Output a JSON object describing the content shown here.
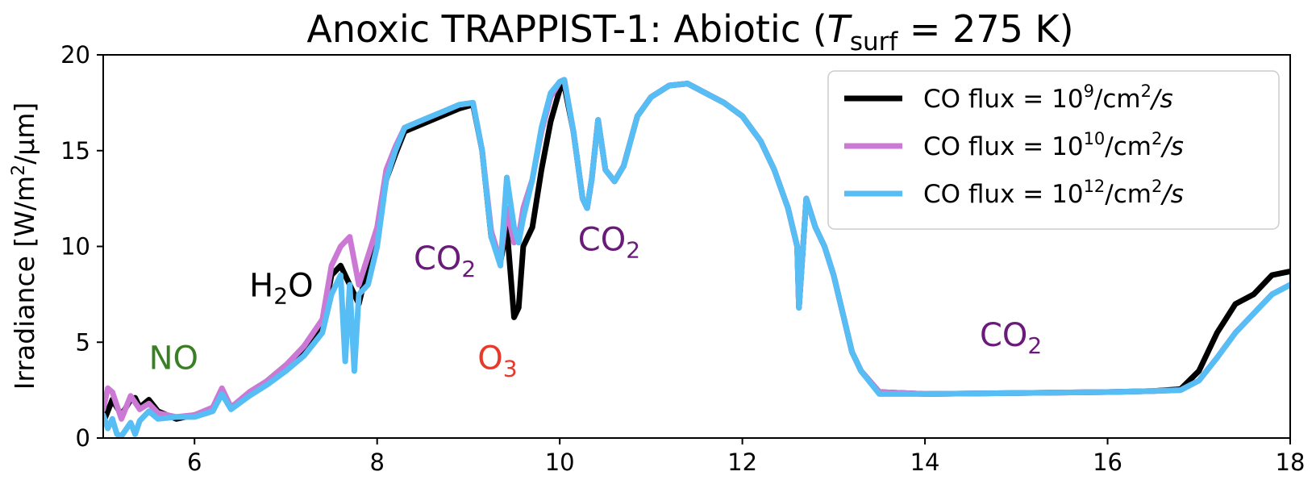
{
  "chart_data": {
    "type": "line",
    "title": {
      "prefix": "Anoxic TRAPPIST-1: Abiotic (",
      "var": "T",
      "var_sub": "surf",
      "suffix": " = 275 K)"
    },
    "ylabel": {
      "prefix": "Irradiance [W/m",
      "sup": "2",
      "suffix": "/μm]"
    },
    "xlabel": "",
    "xlim": [
      5,
      18
    ],
    "ylim": [
      0,
      20
    ],
    "xticks": [
      "6",
      "8",
      "10",
      "12",
      "14",
      "16",
      "18"
    ],
    "yticks": [
      "0",
      "5",
      "10",
      "15",
      "20"
    ],
    "xtick_values": [
      6,
      8,
      10,
      12,
      14,
      16,
      18
    ],
    "ytick_values": [
      0,
      5,
      10,
      15,
      20
    ],
    "legend_position": "top-right",
    "series": [
      {
        "name": "CO flux = 10^9/cm^2/s",
        "legend": {
          "prefix": "CO flux = 10",
          "exp": "9",
          "mid": "/cm",
          "sup2": "2",
          "suffix": "/s"
        },
        "color": "#000000",
        "points": [
          [
            5.0,
            0.8
          ],
          [
            5.1,
            2.0
          ],
          [
            5.2,
            1.2
          ],
          [
            5.3,
            2.0
          ],
          [
            5.35,
            2.1
          ],
          [
            5.4,
            1.6
          ],
          [
            5.5,
            2.0
          ],
          [
            5.6,
            1.4
          ],
          [
            5.8,
            1.0
          ],
          [
            6.0,
            1.2
          ],
          [
            6.2,
            1.5
          ],
          [
            6.3,
            2.5
          ],
          [
            6.4,
            1.6
          ],
          [
            6.6,
            2.3
          ],
          [
            6.8,
            3.0
          ],
          [
            7.0,
            3.8
          ],
          [
            7.2,
            4.6
          ],
          [
            7.4,
            6.0
          ],
          [
            7.5,
            8.5
          ],
          [
            7.6,
            9.0
          ],
          [
            7.7,
            8.0
          ],
          [
            7.8,
            7.0
          ],
          [
            7.9,
            9.0
          ],
          [
            8.0,
            10.5
          ],
          [
            8.1,
            13.5
          ],
          [
            8.2,
            14.8
          ],
          [
            8.3,
            16.0
          ],
          [
            8.5,
            16.4
          ],
          [
            8.7,
            16.8
          ],
          [
            8.9,
            17.2
          ],
          [
            9.05,
            17.4
          ],
          [
            9.15,
            15.0
          ],
          [
            9.25,
            10.5
          ],
          [
            9.35,
            9.2
          ],
          [
            9.42,
            11.0
          ],
          [
            9.5,
            6.3
          ],
          [
            9.55,
            6.8
          ],
          [
            9.6,
            10.0
          ],
          [
            9.7,
            11.0
          ],
          [
            9.8,
            14.0
          ],
          [
            9.9,
            16.5
          ],
          [
            10.0,
            18.2
          ],
          [
            10.05,
            18.4
          ],
          [
            10.15,
            16.0
          ],
          [
            10.25,
            12.5
          ],
          [
            10.3,
            12.0
          ],
          [
            10.35,
            13.5
          ],
          [
            10.42,
            16.6
          ],
          [
            10.5,
            14.0
          ],
          [
            10.6,
            13.4
          ],
          [
            10.7,
            14.2
          ],
          [
            10.85,
            16.8
          ],
          [
            11.0,
            17.8
          ],
          [
            11.2,
            18.4
          ],
          [
            11.4,
            18.5
          ],
          [
            11.6,
            18.0
          ],
          [
            11.8,
            17.5
          ],
          [
            12.0,
            16.8
          ],
          [
            12.2,
            15.5
          ],
          [
            12.35,
            14.0
          ],
          [
            12.5,
            12.0
          ],
          [
            12.6,
            10.0
          ],
          [
            12.62,
            6.8
          ],
          [
            12.7,
            12.5
          ],
          [
            12.8,
            11.0
          ],
          [
            12.9,
            10.0
          ],
          [
            13.0,
            8.5
          ],
          [
            13.1,
            6.5
          ],
          [
            13.2,
            4.5
          ],
          [
            13.3,
            3.5
          ],
          [
            13.5,
            2.4
          ],
          [
            14.0,
            2.3
          ],
          [
            15.0,
            2.35
          ],
          [
            16.0,
            2.4
          ],
          [
            16.5,
            2.45
          ],
          [
            16.8,
            2.55
          ],
          [
            17.0,
            3.5
          ],
          [
            17.2,
            5.5
          ],
          [
            17.4,
            7.0
          ],
          [
            17.6,
            7.5
          ],
          [
            17.8,
            8.5
          ],
          [
            18.0,
            8.7
          ]
        ]
      },
      {
        "name": "CO flux = 10^10/cm^2/s",
        "legend": {
          "prefix": "CO flux = 10",
          "exp": "10",
          "mid": "/cm",
          "sup2": "2",
          "suffix": "/s"
        },
        "color": "#cc79d6",
        "points": [
          [
            5.0,
            1.5
          ],
          [
            5.05,
            2.6
          ],
          [
            5.1,
            2.4
          ],
          [
            5.2,
            1.0
          ],
          [
            5.3,
            2.2
          ],
          [
            5.4,
            1.5
          ],
          [
            5.5,
            1.8
          ],
          [
            5.6,
            1.3
          ],
          [
            5.8,
            1.1
          ],
          [
            6.0,
            1.2
          ],
          [
            6.2,
            1.6
          ],
          [
            6.3,
            2.6
          ],
          [
            6.4,
            1.6
          ],
          [
            6.6,
            2.4
          ],
          [
            6.8,
            3.0
          ],
          [
            7.0,
            3.8
          ],
          [
            7.2,
            4.8
          ],
          [
            7.4,
            6.2
          ],
          [
            7.5,
            9.0
          ],
          [
            7.6,
            10.0
          ],
          [
            7.7,
            10.5
          ],
          [
            7.8,
            8.0
          ],
          [
            7.9,
            9.5
          ],
          [
            8.0,
            11.0
          ],
          [
            8.1,
            14.0
          ],
          [
            8.2,
            15.2
          ],
          [
            8.3,
            16.2
          ],
          [
            8.5,
            16.6
          ],
          [
            8.7,
            17.0
          ],
          [
            8.9,
            17.4
          ],
          [
            9.05,
            17.5
          ],
          [
            9.15,
            15.0
          ],
          [
            9.25,
            10.8
          ],
          [
            9.35,
            9.2
          ],
          [
            9.42,
            12.0
          ],
          [
            9.5,
            10.2
          ],
          [
            9.55,
            10.5
          ],
          [
            9.6,
            12.0
          ],
          [
            9.7,
            13.5
          ],
          [
            9.8,
            16.0
          ],
          [
            9.9,
            17.8
          ],
          [
            10.0,
            18.6
          ],
          [
            10.05,
            18.7
          ],
          [
            10.15,
            16.0
          ],
          [
            10.25,
            12.5
          ],
          [
            10.3,
            12.0
          ],
          [
            10.35,
            13.5
          ],
          [
            10.42,
            16.6
          ],
          [
            10.5,
            14.0
          ],
          [
            10.6,
            13.4
          ],
          [
            10.7,
            14.2
          ],
          [
            10.85,
            16.8
          ],
          [
            11.0,
            17.8
          ],
          [
            11.2,
            18.4
          ],
          [
            11.4,
            18.5
          ],
          [
            11.6,
            18.0
          ],
          [
            11.8,
            17.5
          ],
          [
            12.0,
            16.8
          ],
          [
            12.2,
            15.5
          ],
          [
            12.35,
            14.0
          ],
          [
            12.5,
            12.0
          ],
          [
            12.6,
            10.0
          ],
          [
            12.62,
            6.8
          ],
          [
            12.7,
            12.5
          ],
          [
            12.8,
            11.0
          ],
          [
            12.9,
            10.0
          ],
          [
            13.0,
            8.5
          ],
          [
            13.1,
            6.5
          ],
          [
            13.2,
            4.5
          ],
          [
            13.3,
            3.5
          ],
          [
            13.5,
            2.4
          ],
          [
            14.0,
            2.3
          ],
          [
            15.0,
            2.35
          ],
          [
            16.0,
            2.4
          ],
          [
            16.5,
            2.45
          ],
          [
            16.8,
            2.5
          ],
          [
            17.0,
            3.0
          ],
          [
            17.2,
            4.2
          ],
          [
            17.4,
            5.5
          ],
          [
            17.6,
            6.5
          ],
          [
            17.8,
            7.5
          ],
          [
            18.0,
            8.0
          ]
        ]
      },
      {
        "name": "CO flux = 10^12/cm^2/s",
        "legend": {
          "prefix": "CO flux = 10",
          "exp": "12",
          "mid": "/cm",
          "sup2": "2",
          "suffix": "/s"
        },
        "color": "#56bdf5",
        "points": [
          [
            5.0,
            1.2
          ],
          [
            5.05,
            0.5
          ],
          [
            5.1,
            1.0
          ],
          [
            5.15,
            0.2
          ],
          [
            5.2,
            0.1
          ],
          [
            5.3,
            0.8
          ],
          [
            5.35,
            0.2
          ],
          [
            5.4,
            0.9
          ],
          [
            5.5,
            1.4
          ],
          [
            5.6,
            1.0
          ],
          [
            5.8,
            1.1
          ],
          [
            6.0,
            1.1
          ],
          [
            6.2,
            1.4
          ],
          [
            6.3,
            2.3
          ],
          [
            6.4,
            1.5
          ],
          [
            6.6,
            2.2
          ],
          [
            6.8,
            2.8
          ],
          [
            7.0,
            3.5
          ],
          [
            7.2,
            4.3
          ],
          [
            7.4,
            5.5
          ],
          [
            7.5,
            7.5
          ],
          [
            7.6,
            8.5
          ],
          [
            7.65,
            4.0
          ],
          [
            7.7,
            8.0
          ],
          [
            7.75,
            3.5
          ],
          [
            7.8,
            7.5
          ],
          [
            7.9,
            8.0
          ],
          [
            8.0,
            10.0
          ],
          [
            8.1,
            13.5
          ],
          [
            8.2,
            15.0
          ],
          [
            8.3,
            16.2
          ],
          [
            8.5,
            16.6
          ],
          [
            8.7,
            17.0
          ],
          [
            8.9,
            17.4
          ],
          [
            9.05,
            17.5
          ],
          [
            9.15,
            15.0
          ],
          [
            9.25,
            10.5
          ],
          [
            9.35,
            9.0
          ],
          [
            9.42,
            13.6
          ],
          [
            9.5,
            11.0
          ],
          [
            9.55,
            10.2
          ],
          [
            9.6,
            11.5
          ],
          [
            9.7,
            13.5
          ],
          [
            9.8,
            16.2
          ],
          [
            9.9,
            18.0
          ],
          [
            10.0,
            18.6
          ],
          [
            10.05,
            18.7
          ],
          [
            10.15,
            16.0
          ],
          [
            10.25,
            12.5
          ],
          [
            10.3,
            12.0
          ],
          [
            10.35,
            13.5
          ],
          [
            10.42,
            16.6
          ],
          [
            10.5,
            14.0
          ],
          [
            10.6,
            13.4
          ],
          [
            10.7,
            14.2
          ],
          [
            10.85,
            16.8
          ],
          [
            11.0,
            17.8
          ],
          [
            11.2,
            18.4
          ],
          [
            11.4,
            18.5
          ],
          [
            11.6,
            18.0
          ],
          [
            11.8,
            17.5
          ],
          [
            12.0,
            16.8
          ],
          [
            12.2,
            15.5
          ],
          [
            12.35,
            14.0
          ],
          [
            12.5,
            12.0
          ],
          [
            12.6,
            10.0
          ],
          [
            12.62,
            6.8
          ],
          [
            12.7,
            12.5
          ],
          [
            12.8,
            11.0
          ],
          [
            12.9,
            10.0
          ],
          [
            13.0,
            8.5
          ],
          [
            13.1,
            6.5
          ],
          [
            13.2,
            4.5
          ],
          [
            13.3,
            3.5
          ],
          [
            13.5,
            2.3
          ],
          [
            14.0,
            2.3
          ],
          [
            15.0,
            2.35
          ],
          [
            16.0,
            2.4
          ],
          [
            16.5,
            2.45
          ],
          [
            16.8,
            2.5
          ],
          [
            17.0,
            3.0
          ],
          [
            17.2,
            4.2
          ],
          [
            17.4,
            5.5
          ],
          [
            17.6,
            6.5
          ],
          [
            17.8,
            7.5
          ],
          [
            18.0,
            8.0
          ]
        ]
      }
    ],
    "annotations": [
      {
        "label": "NO",
        "sub": "",
        "x": 5.5,
        "y": 3.6,
        "color": "#3a7f26"
      },
      {
        "label": "H",
        "sub": "2",
        "tail": "O",
        "x": 6.6,
        "y": 7.4,
        "color": "#000000"
      },
      {
        "label": "CO",
        "sub": "2",
        "x": 8.4,
        "y": 8.8,
        "color": "#6a1b7a"
      },
      {
        "label": "O",
        "sub": "3",
        "x": 9.1,
        "y": 3.6,
        "color": "#e8382a"
      },
      {
        "label": "CO",
        "sub": "2",
        "x": 10.2,
        "y": 9.8,
        "color": "#6a1b7a"
      },
      {
        "label": "CO",
        "sub": "2",
        "x": 14.6,
        "y": 4.8,
        "color": "#6a1b7a"
      }
    ]
  }
}
